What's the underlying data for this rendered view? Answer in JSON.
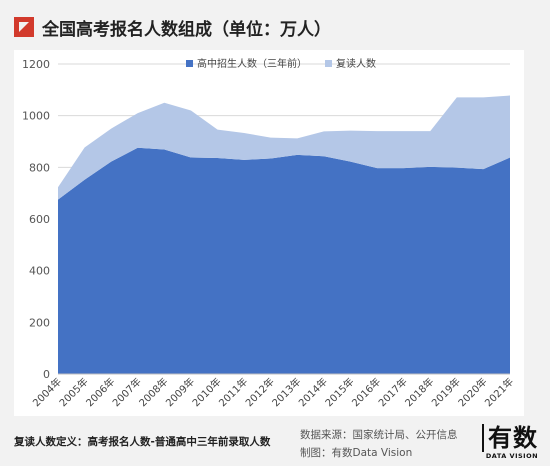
{
  "header": {
    "title": "全国高考报名人数组成（单位：万人）"
  },
  "footer": {
    "definition": "复读人数定义：高考报名人数-普通高中三年前录取人数",
    "source": "数据来源：国家统计局、公开信息",
    "made_by": "制图：有数Data Vision",
    "brand_main": "有数",
    "brand_sub": "DATA VISION"
  },
  "chart_data": {
    "type": "area",
    "stacked": true,
    "categories": [
      "2004年",
      "2005年",
      "2006年",
      "2007年",
      "2008年",
      "2009年",
      "2010年",
      "2011年",
      "2012年",
      "2013年",
      "2014年",
      "2015年",
      "2016年",
      "2017年",
      "2018年",
      "2019年",
      "2020年",
      "2021年"
    ],
    "series": [
      {
        "name": "高中招生人数（三年前）",
        "color": "#4472c4",
        "values": [
          675,
          752,
          822,
          876,
          869,
          838,
          836,
          829,
          834,
          848,
          843,
          822,
          797,
          797,
          802,
          799,
          793,
          838
        ]
      },
      {
        "name": "复读人数",
        "color": "#b4c7e7",
        "values": [
          48,
          125,
          128,
          134,
          181,
          182,
          110,
          104,
          81,
          64,
          96,
          120,
          143,
          143,
          138,
          272,
          278,
          240
        ]
      }
    ],
    "ylim": [
      0,
      1200
    ],
    "yticks": [
      0,
      200,
      400,
      600,
      800,
      1000,
      1200
    ],
    "grid": true,
    "legend_position": "top-center"
  }
}
